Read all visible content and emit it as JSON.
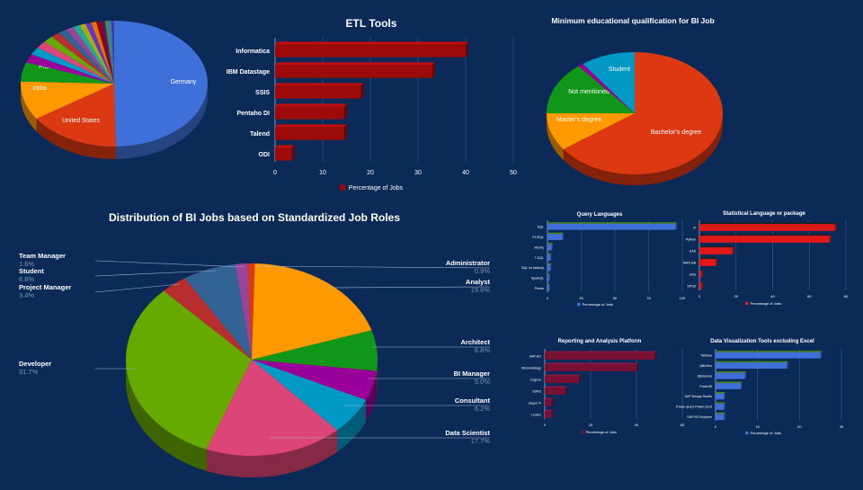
{
  "chart_data": [
    {
      "id": "countries",
      "type": "pie",
      "title": "",
      "slices": [
        {
          "label": "Germany",
          "value": 50,
          "color": "#3f6fd8"
        },
        {
          "label": "United States",
          "value": 16,
          "color": "#dc3912"
        },
        {
          "label": "India",
          "value": 10,
          "color": "#ff9900"
        },
        {
          "label": "France",
          "value": 5,
          "color": "#109618"
        },
        {
          "label": "",
          "value": 2.2,
          "color": "#990099"
        },
        {
          "label": "",
          "value": 2.0,
          "color": "#0099c6"
        },
        {
          "label": "",
          "value": 1.9,
          "color": "#dd4477"
        },
        {
          "label": "",
          "value": 1.8,
          "color": "#66aa00"
        },
        {
          "label": "",
          "value": 1.6,
          "color": "#b82e2e"
        },
        {
          "label": "",
          "value": 1.5,
          "color": "#316395"
        },
        {
          "label": "",
          "value": 1.3,
          "color": "#994499"
        },
        {
          "label": "",
          "value": 1.2,
          "color": "#22aa99"
        },
        {
          "label": "",
          "value": 1.1,
          "color": "#aaaa11"
        },
        {
          "label": "",
          "value": 1.0,
          "color": "#6633cc"
        },
        {
          "label": "",
          "value": 0.9,
          "color": "#e67300"
        },
        {
          "label": "",
          "value": 0.8,
          "color": "#8b0707"
        },
        {
          "label": "",
          "value": 0.7,
          "color": "#651067"
        },
        {
          "label": "",
          "value": 0.6,
          "color": "#329262"
        },
        {
          "label": "",
          "value": 0.5,
          "color": "#5574a6"
        },
        {
          "label": "",
          "value": 0.5,
          "color": "#3b3eac"
        }
      ]
    },
    {
      "id": "etl",
      "type": "bar",
      "orientation": "horizontal",
      "title": "ETL Tools",
      "categories": [
        "Informatica",
        "IBM Datastage",
        "SSIS",
        "Pentaho DI",
        "Talend",
        "ODI"
      ],
      "series": [
        {
          "name": "Percentage of Jobs",
          "values": [
            40,
            33,
            18,
            14.5,
            14.5,
            3.5
          ]
        }
      ],
      "xlim": [
        0,
        50
      ],
      "ticks": [
        0,
        10,
        20,
        30,
        40,
        50
      ],
      "color": "#9c0a0a",
      "grid": true,
      "legend": "bottom"
    },
    {
      "id": "education",
      "type": "pie",
      "title": "Minimum educational qualification for BI Job",
      "slices": [
        {
          "label": "Bachelor's degree",
          "value": 65,
          "color": "#dc3912"
        },
        {
          "label": "Master's degree",
          "value": 10,
          "color": "#ff9900"
        },
        {
          "label": "Not mentioned",
          "value": 14,
          "color": "#109618"
        },
        {
          "label": "",
          "value": 1,
          "color": "#990099"
        },
        {
          "label": "Student",
          "value": 10,
          "color": "#0099c6"
        }
      ]
    },
    {
      "id": "roles",
      "type": "pie",
      "title": "Distribution of BI Jobs based on Standardized Job Roles",
      "slices": [
        {
          "label": "Administrator",
          "value": 0.9,
          "value_label": "0.9%",
          "color": "#dc3912"
        },
        {
          "label": "Analyst",
          "value": 19.6,
          "value_label": "19.6%",
          "color": "#ff9900"
        },
        {
          "label": "Architect",
          "value": 6.8,
          "value_label": "6.8%",
          "color": "#109618"
        },
        {
          "label": "BI Manager",
          "value": 5.0,
          "value_label": "5.0%",
          "color": "#990099"
        },
        {
          "label": "Consultant",
          "value": 6.2,
          "value_label": "6.2%",
          "color": "#0099c6"
        },
        {
          "label": "Data Scientist",
          "value": 17.7,
          "value_label": "17.7%",
          "color": "#dd4477"
        },
        {
          "label": "Developer",
          "value": 31.7,
          "value_label": "31.7%",
          "color": "#66aa00"
        },
        {
          "label": "Project Manager",
          "value": 3.4,
          "value_label": "3.4%",
          "color": "#b82e2e"
        },
        {
          "label": "Student",
          "value": 6.8,
          "value_label": "6.8%",
          "color": "#316395"
        },
        {
          "label": "Team Manager",
          "value": 1.6,
          "value_label": "1.6%",
          "color": "#994499"
        }
      ]
    },
    {
      "id": "query",
      "type": "bar",
      "orientation": "horizontal",
      "title": "Query Languages",
      "categories": [
        "SQL",
        "PL/SQL",
        "MextIy",
        "T-SQL",
        "SQL on hadoop",
        "SparkQL",
        "Presto"
      ],
      "series": [
        {
          "name": "Percentage of Jobs",
          "values": [
            95,
            11,
            3,
            2,
            2,
            1,
            1
          ]
        }
      ],
      "xlim": [
        0,
        100
      ],
      "ticks": [
        0,
        25,
        50,
        75,
        100
      ],
      "color": "#3f6fd8",
      "grid": true,
      "legend": "bottom"
    },
    {
      "id": "stats",
      "type": "bar",
      "orientation": "horizontal",
      "title": "Statistical Language or package",
      "categories": [
        "R",
        "Python",
        "SAS",
        "MATLAB",
        "Julia",
        "SPSS"
      ],
      "series": [
        {
          "name": "Percentage of Jobs",
          "values": [
            74,
            71,
            18,
            9,
            1,
            1
          ]
        }
      ],
      "xlim": [
        0,
        80
      ],
      "ticks": [
        0,
        20,
        40,
        60,
        80
      ],
      "color": "#e01818",
      "grid": true,
      "legend": "bottom"
    },
    {
      "id": "reporting",
      "type": "bar",
      "orientation": "horizontal",
      "title": "Reporting and Analysis Platform",
      "categories": [
        "SAP BO",
        "Microstrategy",
        "Cognos",
        "SSRS",
        "Jasper R",
        "Looker"
      ],
      "series": [
        {
          "name": "Percentage of Jobs",
          "values": [
            48,
            40,
            15,
            9,
            3,
            3
          ]
        }
      ],
      "xlim": [
        0,
        60
      ],
      "ticks": [
        0,
        20,
        40,
        60
      ],
      "color": "#7a1034",
      "grid": true,
      "legend": "bottom"
    },
    {
      "id": "viz",
      "type": "bar",
      "orientation": "horizontal",
      "title": "Data Visualization Tools excluding Excel",
      "categories": [
        "Tableau",
        "QlikView",
        "QlikSense",
        "PowerBI",
        "SAP Design Studio",
        "Power query Power pivot",
        "SAP BO Explorer"
      ],
      "series": [
        {
          "name": "Percentage of Jobs",
          "values": [
            25,
            17,
            7,
            6,
            2,
            2,
            2
          ]
        }
      ],
      "xlim": [
        0,
        30
      ],
      "ticks": [
        0,
        10,
        20,
        30
      ],
      "color": "#3f6fd8",
      "grid": true,
      "legend": "bottom"
    }
  ]
}
